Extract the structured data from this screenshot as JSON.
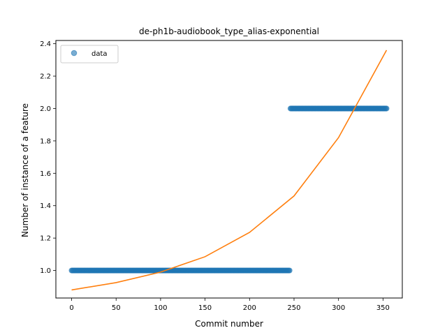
{
  "chart_data": {
    "type": "scatter",
    "title": "de-ph1b-audiobook_type_alias-exponential",
    "xlabel": "Commit number",
    "ylabel": "Number of instance of a feature",
    "xlim": [
      -17.7,
      371.7
    ],
    "ylim": [
      0.83,
      2.42
    ],
    "xticks": [
      0,
      50,
      100,
      150,
      200,
      250,
      300,
      350
    ],
    "yticks": [
      1.0,
      1.2,
      1.4,
      1.6,
      1.8,
      2.0,
      2.2,
      2.4
    ],
    "xtick_labels": [
      "0",
      "50",
      "100",
      "150",
      "200",
      "250",
      "300",
      "350"
    ],
    "ytick_labels": [
      "1.0",
      "1.2",
      "1.4",
      "1.6",
      "1.8",
      "2.0",
      "2.2",
      "2.4"
    ],
    "grid": false,
    "legend": {
      "position": "top-left",
      "entries": [
        "data"
      ]
    },
    "series": [
      {
        "name": "data",
        "kind": "points",
        "color": "#1f77b4",
        "segments": [
          {
            "x_start": 0,
            "x_end": 245,
            "step": 1,
            "y": 1.0
          },
          {
            "x_start": 246,
            "x_end": 354,
            "step": 1,
            "y": 2.0
          }
        ]
      },
      {
        "kind": "line",
        "color": "#ff7f0e",
        "x": [
          0,
          50,
          100,
          150,
          200,
          250,
          300,
          354
        ],
        "y": [
          0.88,
          0.925,
          0.99,
          1.085,
          1.235,
          1.46,
          1.82,
          2.36
        ]
      }
    ]
  }
}
